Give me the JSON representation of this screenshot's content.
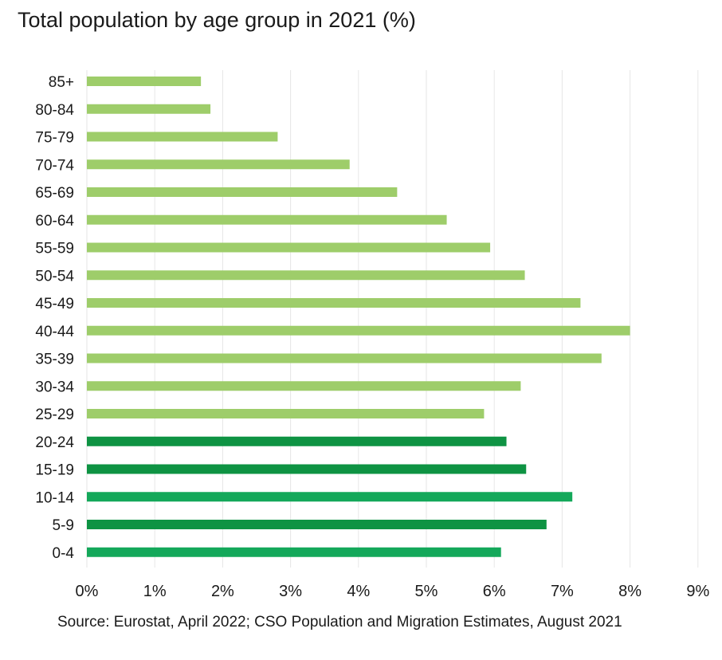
{
  "title": "Total population by age group in 2021 (%)",
  "source": "Source: Eurostat, April 2022; CSO Population and Migration Estimates, August 2021",
  "chart_data": {
    "type": "bar",
    "orientation": "horizontal",
    "title": "Total population by age group in 2021 (%)",
    "xlabel": "",
    "ylabel": "",
    "xlim": [
      0,
      9
    ],
    "x_ticks": [
      "0%",
      "1%",
      "2%",
      "3%",
      "4%",
      "5%",
      "6%",
      "7%",
      "8%",
      "9%"
    ],
    "grid": "vertical",
    "legend": "none",
    "categories": [
      "85+",
      "80-84",
      "75-79",
      "70-74",
      "65-69",
      "60-64",
      "55-59",
      "50-54",
      "45-49",
      "40-44",
      "35-39",
      "30-34",
      "25-29",
      "20-24",
      "15-19",
      "10-14",
      "5-9",
      "0-4"
    ],
    "values": [
      1.68,
      1.82,
      2.81,
      3.87,
      4.57,
      5.3,
      5.94,
      6.45,
      7.27,
      8.0,
      7.58,
      6.39,
      5.85,
      6.18,
      6.47,
      7.15,
      6.77,
      6.1
    ],
    "colors": [
      "#9ecd6a",
      "#9ecd6a",
      "#9ecd6a",
      "#9ecd6a",
      "#9ecd6a",
      "#9ecd6a",
      "#9ecd6a",
      "#9ecd6a",
      "#9ecd6a",
      "#9ecd6a",
      "#9ecd6a",
      "#9ecd6a",
      "#9ecd6a",
      "#0e9343",
      "#0e9343",
      "#14a85a",
      "#0e9343",
      "#14a85a"
    ]
  }
}
